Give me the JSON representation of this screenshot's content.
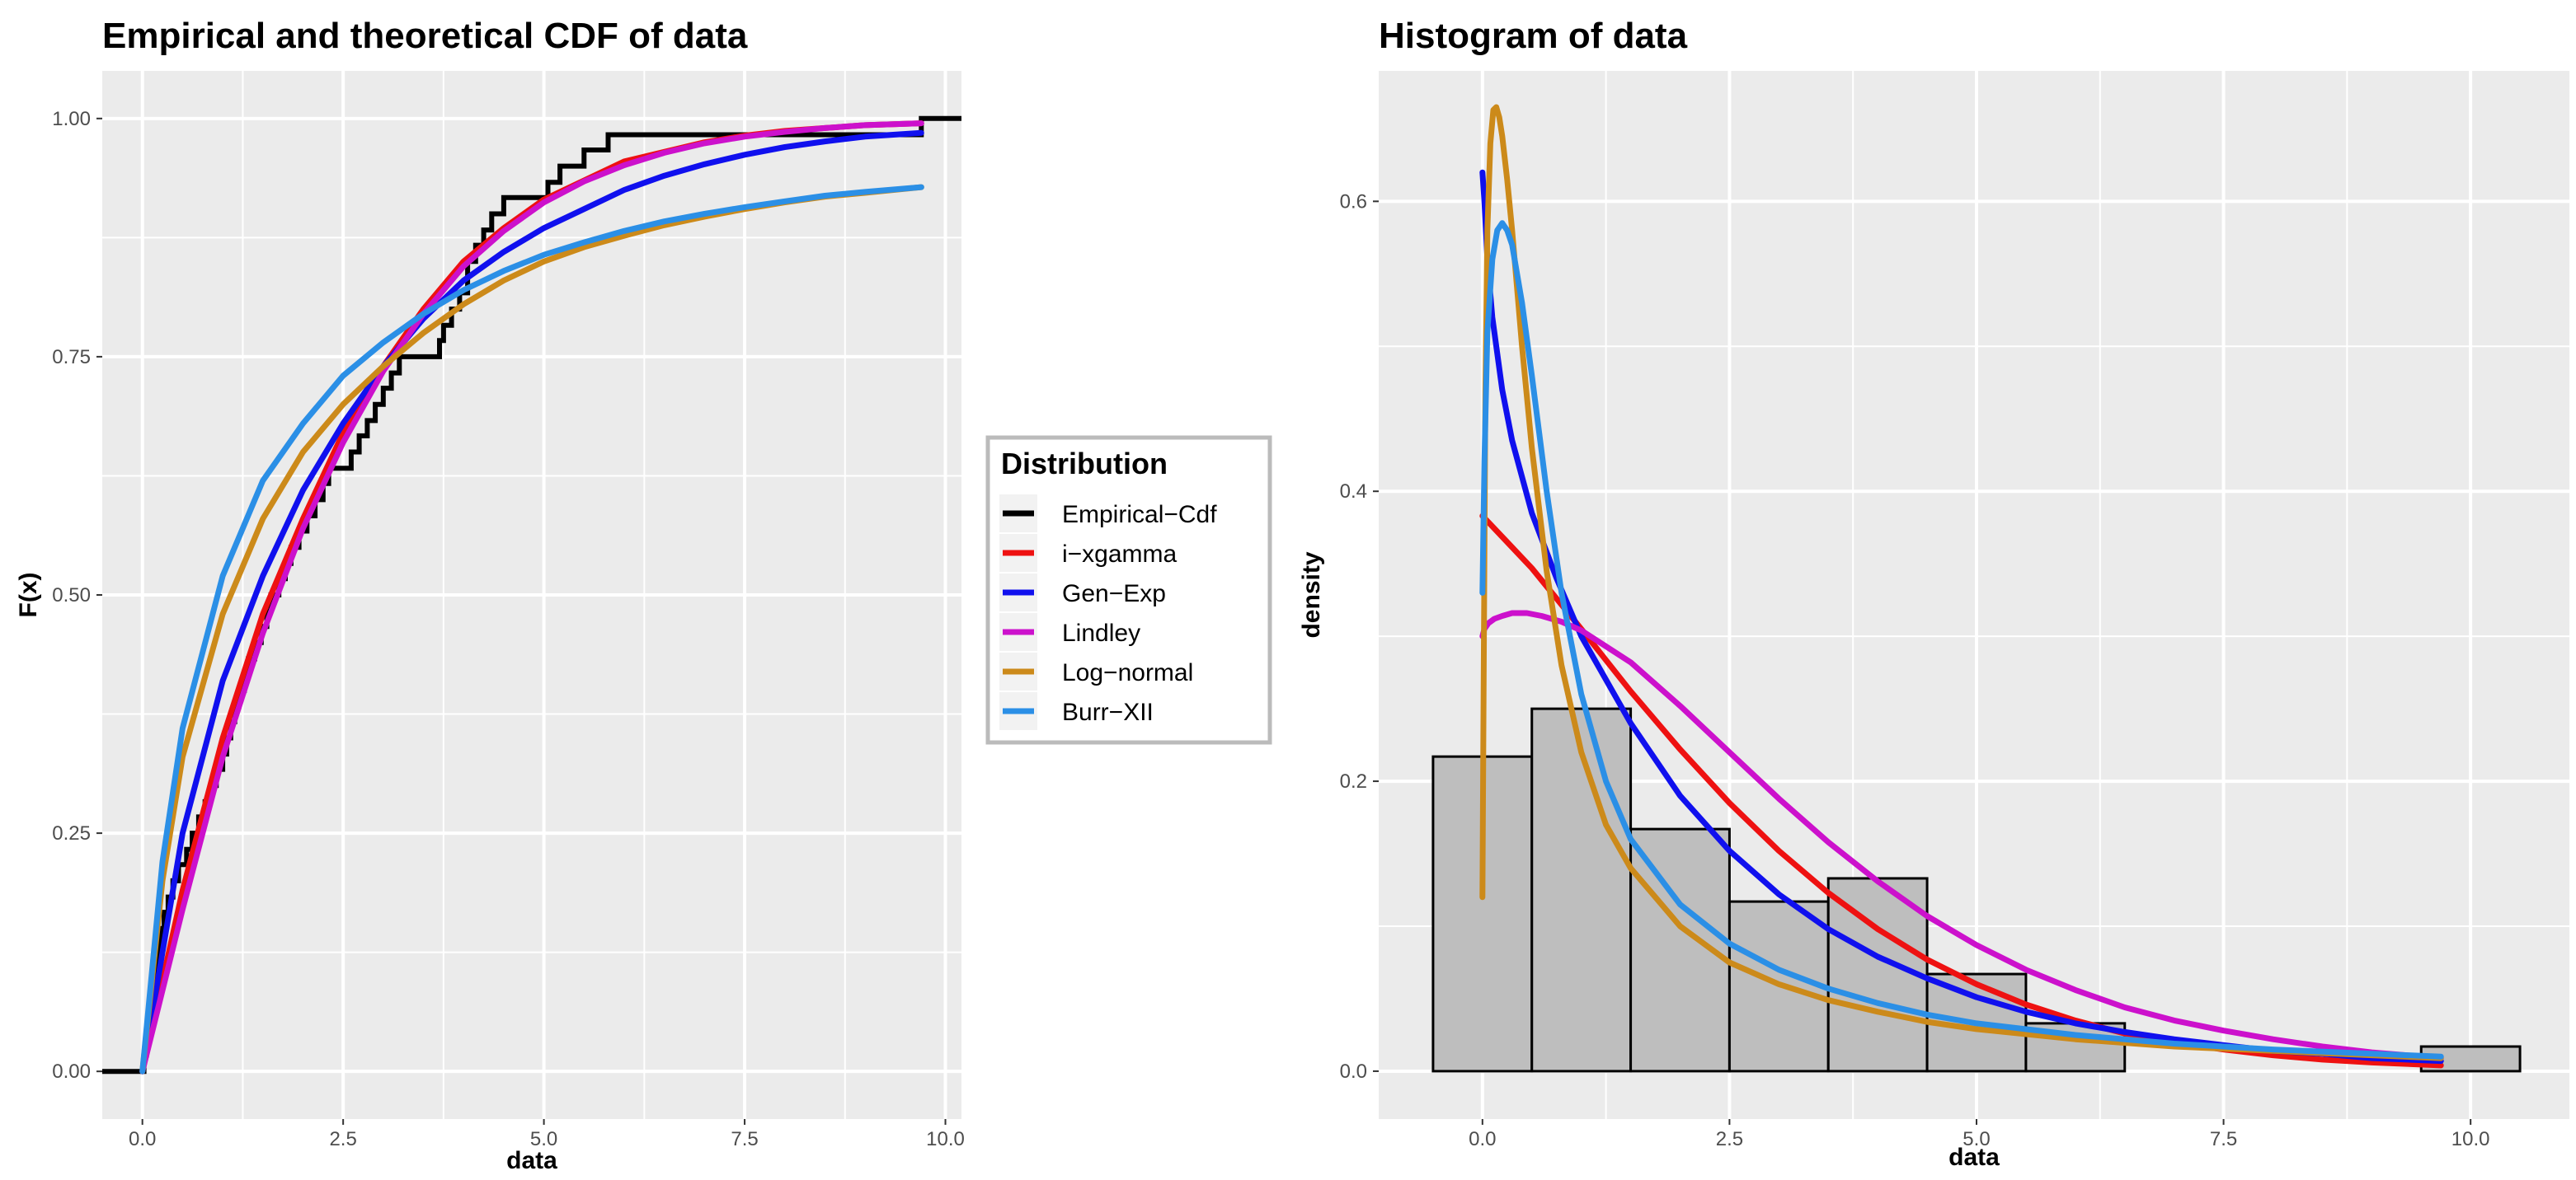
{
  "legend": {
    "title": "Distribution",
    "entries": [
      {
        "label": "Empirical−Cdf",
        "color": "#000000"
      },
      {
        "label": "i−xgamma",
        "color": "#ee1111"
      },
      {
        "label": "Gen−Exp",
        "color": "#1010ee"
      },
      {
        "label": "Lindley",
        "color": "#cc11cc"
      },
      {
        "label": "Log−normal",
        "color": "#cc8a1a"
      },
      {
        "label": "Burr−XII",
        "color": "#2b8fe6"
      }
    ]
  },
  "chart_data": [
    {
      "type": "line",
      "title": "Empirical and theoretical CDF of data",
      "xlabel": "data",
      "ylabel": "F(x)",
      "xlim": [
        -0.5,
        10.2
      ],
      "ylim": [
        -0.05,
        1.05
      ],
      "xticks": [
        0,
        2.5,
        5,
        7.5,
        10
      ],
      "xtick_labels": [
        "0.0",
        "2.5",
        "5.0",
        "7.5",
        "10.0"
      ],
      "yticks": [
        0,
        0.25,
        0.5,
        0.75,
        1
      ],
      "ytick_labels": [
        "0.00",
        "0.25",
        "0.50",
        "0.75",
        "1.00"
      ],
      "empirical_cdf": {
        "name": "Empirical−Cdf",
        "x": [
          -0.5,
          0.02,
          0.05,
          0.08,
          0.1,
          0.12,
          0.15,
          0.18,
          0.2,
          0.23,
          0.27,
          0.32,
          0.38,
          0.45,
          0.55,
          0.62,
          0.7,
          0.78,
          0.85,
          0.92,
          1.0,
          1.05,
          1.1,
          1.15,
          1.2,
          1.27,
          1.32,
          1.4,
          1.48,
          1.55,
          1.6,
          1.7,
          1.78,
          1.85,
          1.95,
          2.05,
          2.15,
          2.25,
          2.32,
          2.6,
          2.7,
          2.8,
          2.9,
          3.0,
          3.1,
          3.2,
          3.35,
          3.45,
          3.55,
          3.7,
          3.75,
          3.85,
          3.95,
          4.05,
          4.15,
          4.25,
          4.35,
          4.5,
          5.05,
          5.2,
          5.5,
          5.8,
          6.1,
          9.65,
          9.7,
          10.2
        ],
        "y": [
          0,
          0.017,
          0.033,
          0.05,
          0.067,
          0.083,
          0.1,
          0.117,
          0.133,
          0.15,
          0.167,
          0.183,
          0.2,
          0.217,
          0.233,
          0.25,
          0.267,
          0.283,
          0.3,
          0.317,
          0.333,
          0.35,
          0.367,
          0.383,
          0.4,
          0.417,
          0.433,
          0.45,
          0.467,
          0.483,
          0.5,
          0.517,
          0.533,
          0.55,
          0.567,
          0.583,
          0.6,
          0.617,
          0.633,
          0.65,
          0.667,
          0.683,
          0.7,
          0.717,
          0.733,
          0.75,
          0.75,
          0.75,
          0.75,
          0.767,
          0.783,
          0.8,
          0.817,
          0.85,
          0.867,
          0.883,
          0.9,
          0.917,
          0.933,
          0.95,
          0.967,
          0.983,
          0.983,
          0.983,
          1.0,
          1.0
        ]
      },
      "series": [
        {
          "name": "i−xgamma",
          "color": "#ee1111",
          "x": [
            0,
            0.5,
            1,
            1.5,
            2,
            2.5,
            3,
            3.5,
            4,
            4.5,
            5,
            5.5,
            6,
            6.5,
            7,
            7.5,
            8,
            8.5,
            9,
            9.7
          ],
          "y": [
            0,
            0.19,
            0.35,
            0.48,
            0.58,
            0.67,
            0.74,
            0.8,
            0.85,
            0.885,
            0.915,
            0.935,
            0.955,
            0.965,
            0.975,
            0.982,
            0.987,
            0.99,
            0.993,
            0.995
          ]
        },
        {
          "name": "Gen−Exp",
          "color": "#1010ee",
          "x": [
            0,
            0.5,
            1,
            1.5,
            2,
            2.5,
            3,
            3.5,
            4,
            4.5,
            5,
            5.5,
            6,
            6.5,
            7,
            7.5,
            8,
            8.5,
            9,
            9.7
          ],
          "y": [
            0,
            0.25,
            0.41,
            0.52,
            0.61,
            0.68,
            0.74,
            0.79,
            0.83,
            0.86,
            0.885,
            0.905,
            0.925,
            0.94,
            0.952,
            0.962,
            0.97,
            0.976,
            0.981,
            0.985
          ]
        },
        {
          "name": "Lindley",
          "color": "#cc11cc",
          "x": [
            0,
            0.5,
            1,
            1.5,
            2,
            2.5,
            3,
            3.5,
            4,
            4.5,
            5,
            5.5,
            6,
            6.5,
            7,
            7.5,
            8,
            8.5,
            9,
            9.7
          ],
          "y": [
            0,
            0.17,
            0.33,
            0.46,
            0.57,
            0.66,
            0.735,
            0.795,
            0.845,
            0.882,
            0.912,
            0.934,
            0.951,
            0.964,
            0.974,
            0.981,
            0.986,
            0.99,
            0.993,
            0.995
          ]
        },
        {
          "name": "Log−normal",
          "color": "#cc8a1a",
          "x": [
            0,
            0.25,
            0.5,
            1,
            1.5,
            2,
            2.5,
            3,
            3.5,
            4,
            4.5,
            5,
            5.5,
            6,
            6.5,
            7,
            7.5,
            8,
            8.5,
            9,
            9.7
          ],
          "y": [
            0,
            0.2,
            0.33,
            0.48,
            0.58,
            0.65,
            0.7,
            0.74,
            0.775,
            0.805,
            0.83,
            0.85,
            0.865,
            0.877,
            0.888,
            0.897,
            0.905,
            0.912,
            0.918,
            0.922,
            0.928
          ]
        },
        {
          "name": "Burr−XII",
          "color": "#2b8fe6",
          "x": [
            0,
            0.25,
            0.5,
            1,
            1.5,
            2,
            2.5,
            3,
            3.5,
            4,
            4.5,
            5,
            5.5,
            6,
            6.5,
            7,
            7.5,
            8,
            8.5,
            9,
            9.7
          ],
          "y": [
            0,
            0.22,
            0.36,
            0.52,
            0.62,
            0.68,
            0.73,
            0.765,
            0.795,
            0.82,
            0.84,
            0.857,
            0.87,
            0.882,
            0.892,
            0.9,
            0.907,
            0.913,
            0.919,
            0.923,
            0.928
          ]
        }
      ]
    },
    {
      "type": "bar",
      "title": "Histogram of data",
      "xlabel": "data",
      "ylabel": "density",
      "xlim": [
        -1.05,
        11.0
      ],
      "ylim": [
        -0.033,
        0.69
      ],
      "xticks": [
        0,
        2.5,
        5,
        7.5,
        10
      ],
      "xtick_labels": [
        "0.0",
        "2.5",
        "5.0",
        "7.5",
        "10.0"
      ],
      "yticks": [
        0,
        0.2,
        0.4,
        0.6
      ],
      "ytick_labels": [
        "0.0",
        "0.2",
        "0.4",
        "0.6"
      ],
      "bins": {
        "edges": [
          -0.5,
          0.5,
          1.5,
          2.5,
          3.5,
          4.5,
          5.5,
          6.5,
          7.5,
          8.5,
          9.5,
          10.5
        ],
        "density": [
          0.217,
          0.25,
          0.167,
          0.117,
          0.133,
          0.067,
          0.033,
          0,
          0,
          0,
          0.017
        ]
      },
      "series": [
        {
          "name": "i−xgamma",
          "color": "#ee1111",
          "x": [
            0,
            0.25,
            0.5,
            1,
            1.5,
            2,
            2.5,
            3,
            3.5,
            4,
            4.5,
            5,
            5.5,
            6,
            6.5,
            7,
            7.5,
            8,
            8.5,
            9,
            9.7
          ],
          "y": [
            0.383,
            0.365,
            0.347,
            0.305,
            0.262,
            0.222,
            0.185,
            0.152,
            0.123,
            0.098,
            0.077,
            0.06,
            0.046,
            0.035,
            0.026,
            0.02,
            0.015,
            0.011,
            0.008,
            0.006,
            0.004
          ]
        },
        {
          "name": "Gen−Exp",
          "color": "#1010ee",
          "x": [
            0,
            0.02,
            0.05,
            0.1,
            0.2,
            0.3,
            0.5,
            0.75,
            1,
            1.5,
            2,
            2.5,
            3,
            3.5,
            4,
            4.5,
            5,
            5.5,
            6,
            6.5,
            7,
            7.5,
            8,
            8.5,
            9,
            9.7
          ],
          "y": [
            0.62,
            0.6,
            0.56,
            0.52,
            0.47,
            0.435,
            0.385,
            0.34,
            0.3,
            0.24,
            0.19,
            0.152,
            0.122,
            0.098,
            0.079,
            0.064,
            0.051,
            0.041,
            0.033,
            0.027,
            0.022,
            0.018,
            0.014,
            0.012,
            0.009,
            0.007
          ]
        },
        {
          "name": "Lindley",
          "color": "#cc11cc",
          "x": [
            0,
            0.02,
            0.06,
            0.12,
            0.2,
            0.3,
            0.45,
            0.6,
            0.8,
            1,
            1.5,
            2,
            2.5,
            3,
            3.5,
            4,
            4.5,
            5,
            5.5,
            6,
            6.5,
            7,
            7.5,
            8,
            8.5,
            9,
            9.7
          ],
          "y": [
            0.3,
            0.305,
            0.309,
            0.312,
            0.314,
            0.316,
            0.316,
            0.314,
            0.31,
            0.304,
            0.282,
            0.252,
            0.22,
            0.188,
            0.158,
            0.131,
            0.107,
            0.087,
            0.07,
            0.056,
            0.044,
            0.035,
            0.028,
            0.022,
            0.017,
            0.013,
            0.009
          ]
        },
        {
          "name": "Log−normal",
          "color": "#cc8a1a",
          "x": [
            0,
            0.015,
            0.03,
            0.05,
            0.08,
            0.11,
            0.14,
            0.17,
            0.2,
            0.25,
            0.3,
            0.4,
            0.5,
            0.65,
            0.8,
            1,
            1.25,
            1.5,
            2,
            2.5,
            3,
            3.5,
            4,
            4.5,
            5,
            6,
            7,
            8,
            9,
            9.7
          ],
          "y": [
            0.12,
            0.3,
            0.47,
            0.58,
            0.64,
            0.663,
            0.665,
            0.658,
            0.645,
            0.615,
            0.58,
            0.5,
            0.43,
            0.345,
            0.28,
            0.22,
            0.17,
            0.14,
            0.1,
            0.075,
            0.06,
            0.049,
            0.041,
            0.034,
            0.029,
            0.022,
            0.017,
            0.014,
            0.011,
            0.009
          ]
        },
        {
          "name": "Burr−XII",
          "color": "#2b8fe6",
          "x": [
            0,
            0.02,
            0.05,
            0.1,
            0.15,
            0.2,
            0.25,
            0.3,
            0.4,
            0.5,
            0.65,
            0.8,
            1,
            1.25,
            1.5,
            2,
            2.5,
            3,
            3.5,
            4,
            4.5,
            5,
            6,
            7,
            8,
            9,
            9.7
          ],
          "y": [
            0.33,
            0.42,
            0.51,
            0.56,
            0.58,
            0.585,
            0.58,
            0.57,
            0.53,
            0.48,
            0.4,
            0.33,
            0.26,
            0.2,
            0.16,
            0.115,
            0.088,
            0.07,
            0.057,
            0.047,
            0.039,
            0.033,
            0.025,
            0.019,
            0.015,
            0.012,
            0.01
          ]
        }
      ]
    }
  ]
}
